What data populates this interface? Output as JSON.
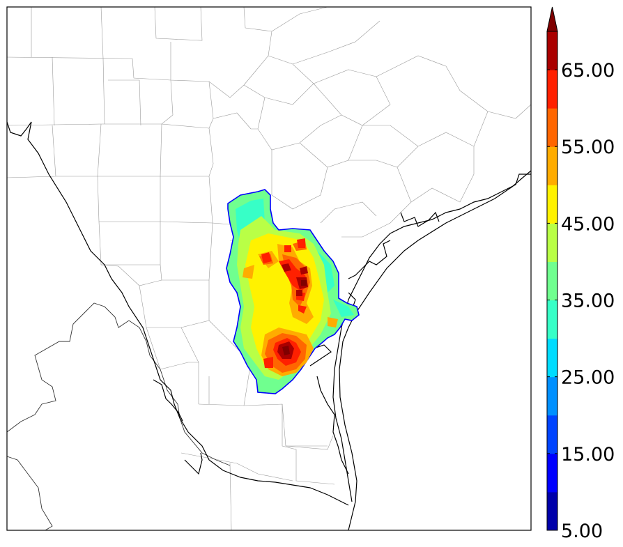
{
  "colorbar": {
    "levels": [
      5,
      10,
      15,
      20,
      25,
      30,
      35,
      40,
      45,
      50,
      55,
      60,
      65,
      70
    ],
    "colors": [
      "#0000aa",
      "#0000ff",
      "#0044ff",
      "#0090ff",
      "#00dcff",
      "#37ffc7",
      "#70ff8f",
      "#b9ff46",
      "#fff200",
      "#ffac00",
      "#ff6600",
      "#ff2000",
      "#aa0000"
    ],
    "overflow_color": "#7f0000",
    "extend": "max",
    "tick_labels": [
      "5.00",
      "15.00",
      "25.00",
      "35.00",
      "45.00",
      "55.00",
      "65.00"
    ]
  },
  "map": {
    "background": "#ffffff",
    "coastline_color": "#000000",
    "boundary_color": "#999999",
    "field_outline_color": "#0000ff"
  }
}
